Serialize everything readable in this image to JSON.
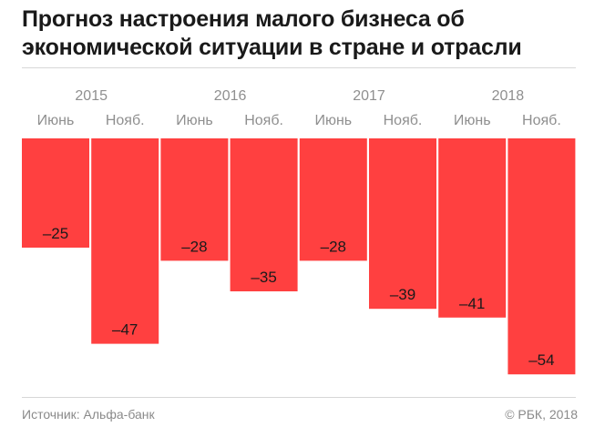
{
  "header": {
    "title": "Прогноз настроения малого бизнеса об экономической ситуации в стране и отрасли"
  },
  "footer": {
    "source": "Источник: Альфа-банк",
    "copyright": "© РБК, 2018"
  },
  "colors": {
    "bar": "#ff4040",
    "label": "#1a1a1a",
    "axis_text": "#8f8f8f"
  },
  "chart_data": {
    "type": "bar",
    "title": "Прогноз настроения малого бизнеса об экономической ситуации в стране и отрасли",
    "years": [
      {
        "label": "2015",
        "span": [
          0,
          1
        ]
      },
      {
        "label": "2016",
        "span": [
          2,
          3
        ]
      },
      {
        "label": "2017",
        "span": [
          4,
          5
        ]
      },
      {
        "label": "2018",
        "span": [
          6,
          7
        ]
      }
    ],
    "categories": [
      "Июнь",
      "Нояб.",
      "Июнь",
      "Нояб.",
      "Июнь",
      "Нояб.",
      "Июнь",
      "Нояб."
    ],
    "values": [
      -25,
      -47,
      -28,
      -35,
      -28,
      -39,
      -41,
      -54
    ],
    "value_labels": [
      "–25",
      "–47",
      "–28",
      "–35",
      "–28",
      "–39",
      "–41",
      "–54"
    ],
    "ylim": [
      -54,
      0
    ],
    "grid": false,
    "legend": "none"
  }
}
